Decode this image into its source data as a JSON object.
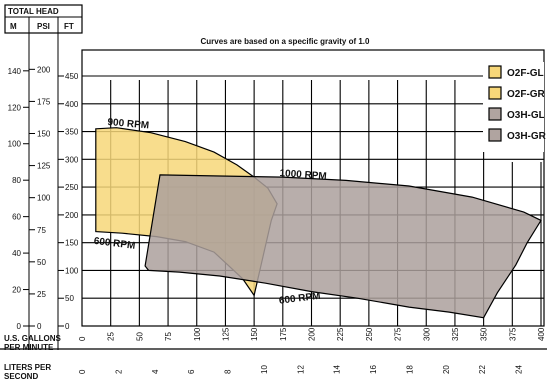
{
  "chart_data": {
    "type": "area",
    "title": "Curves are based on a specific gravity of 1.0",
    "header": {
      "total_head": "TOTAL HEAD",
      "col_m": "M",
      "col_psi": "PSI",
      "col_ft": "FT"
    },
    "x_axis_label_gpm": "U.S. GALLONS PER MINUTE",
    "x_axis_label_lps": "LITERS PER SECOND",
    "x_ticks_gpm": [
      "0",
      "25",
      "50",
      "75",
      "100",
      "125",
      "150",
      "175",
      "200",
      "225",
      "250",
      "275",
      "300",
      "325",
      "350",
      "375",
      "400"
    ],
    "x_ticks_lps": [
      "0",
      "2",
      "4",
      "6",
      "8",
      "10",
      "12",
      "14",
      "16",
      "18",
      "20",
      "22",
      "24"
    ],
    "y_ticks_ft": [
      "0",
      "50",
      "100",
      "150",
      "200",
      "250",
      "300",
      "350",
      "400",
      "450"
    ],
    "y_ticks_psi": [
      "0",
      "25",
      "50",
      "75",
      "100",
      "125",
      "150",
      "175",
      "200"
    ],
    "y_ticks_m": [
      "0",
      "20",
      "40",
      "60",
      "80",
      "100",
      "120",
      "140"
    ],
    "xlim": [
      0,
      410
    ],
    "ylim": [
      0,
      490
    ],
    "legend": [
      {
        "label": "O2F-GL",
        "color": "#f7d779"
      },
      {
        "label": "O2F-GR",
        "color": "#f7d779"
      },
      {
        "label": "O3H-GL",
        "color": "#b0a4a0"
      },
      {
        "label": "O3H-GR",
        "color": "#b0a4a0"
      }
    ],
    "regions": [
      {
        "name": "O2F",
        "color": "#f7d779",
        "label_top": "900 RPM",
        "label_bottom": "600 RPM",
        "boundary": [
          [
            12,
            355
          ],
          [
            30,
            357
          ],
          [
            60,
            348
          ],
          [
            90,
            332
          ],
          [
            115,
            313
          ],
          [
            135,
            290
          ],
          [
            150,
            268
          ],
          [
            162,
            248
          ],
          [
            170,
            220
          ],
          [
            165,
            190
          ],
          [
            150,
            55
          ],
          [
            140,
            85
          ],
          [
            115,
            133
          ],
          [
            90,
            152
          ],
          [
            65,
            161
          ],
          [
            35,
            167
          ],
          [
            12,
            170
          ]
        ]
      },
      {
        "name": "O3H",
        "color": "#aca09c",
        "label_top": "1000 RPM",
        "label_bottom": "600 RPM",
        "boundary": [
          [
            68,
            272
          ],
          [
            120,
            270
          ],
          [
            175,
            268
          ],
          [
            230,
            262
          ],
          [
            285,
            252
          ],
          [
            340,
            232
          ],
          [
            385,
            205
          ],
          [
            400,
            190
          ],
          [
            388,
            150
          ],
          [
            378,
            110
          ],
          [
            362,
            60
          ],
          [
            350,
            15
          ],
          [
            320,
            25
          ],
          [
            285,
            34
          ],
          [
            240,
            50
          ],
          [
            200,
            62
          ],
          [
            160,
            77
          ],
          [
            120,
            90
          ],
          [
            85,
            97
          ],
          [
            58,
            100
          ],
          [
            55,
            108
          ]
        ]
      }
    ],
    "speed_lines": [
      {
        "label": "900 RPM",
        "points": [
          [
            12,
            355
          ],
          [
            30,
            357
          ],
          [
            60,
            348
          ],
          [
            90,
            332
          ],
          [
            115,
            313
          ],
          [
            135,
            290
          ],
          [
            150,
            268
          ],
          [
            162,
            248
          ],
          [
            170,
            220
          ]
        ]
      },
      {
        "label": "1000 RPM",
        "points": [
          [
            68,
            272
          ],
          [
            120,
            270
          ],
          [
            175,
            268
          ],
          [
            230,
            262
          ],
          [
            285,
            252
          ],
          [
            340,
            232
          ],
          [
            385,
            205
          ],
          [
            400,
            190
          ]
        ]
      },
      {
        "label": "600 RPM",
        "points": [
          [
            12,
            170
          ],
          [
            35,
            167
          ],
          [
            65,
            161
          ],
          [
            90,
            152
          ],
          [
            115,
            133
          ],
          [
            140,
            85
          ],
          [
            150,
            55
          ]
        ]
      },
      {
        "label": "600 RPM",
        "points": [
          [
            55,
            108
          ],
          [
            58,
            100
          ],
          [
            85,
            97
          ],
          [
            120,
            90
          ],
          [
            160,
            77
          ],
          [
            200,
            62
          ],
          [
            240,
            50
          ],
          [
            285,
            34
          ],
          [
            320,
            25
          ],
          [
            350,
            15
          ]
        ]
      }
    ]
  }
}
